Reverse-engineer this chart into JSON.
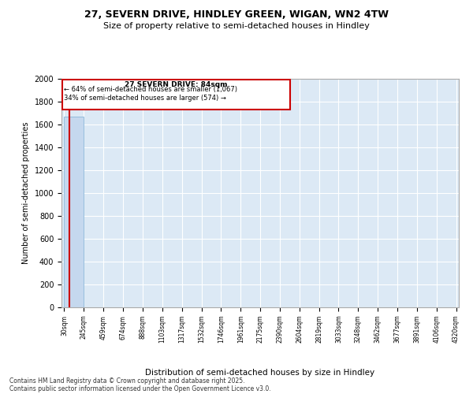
{
  "title1": "27, SEVERN DRIVE, HINDLEY GREEN, WIGAN, WN2 4TW",
  "title2": "Size of property relative to semi-detached houses in Hindley",
  "xlabel": "Distribution of semi-detached houses by size in Hindley",
  "ylabel": "Number of semi-detached properties",
  "annotation_title": "27 SEVERN DRIVE: 84sqm",
  "annotation_line1": "← 64% of semi-detached houses are smaller (1,067)",
  "annotation_line2": "34% of semi-detached houses are larger (574) →",
  "footer1": "Contains HM Land Registry data © Crown copyright and database right 2025.",
  "footer2": "Contains public sector information licensed under the Open Government Licence v3.0.",
  "property_size": 84,
  "bar_color": "#c5d8ee",
  "bar_edge_color": "#7aadd4",
  "property_line_color": "#cc0000",
  "annotation_box_color": "#cc0000",
  "background_color": "#dce9f5",
  "ylim": [
    0,
    2000
  ],
  "yticks": [
    0,
    200,
    400,
    600,
    800,
    1000,
    1200,
    1400,
    1600,
    1800,
    2000
  ],
  "bin_edges": [
    30,
    245,
    459,
    674,
    888,
    1103,
    1317,
    1532,
    1746,
    1961,
    2175,
    2390,
    2604,
    2819,
    3033,
    3248,
    3462,
    3677,
    3891,
    4106,
    4320
  ],
  "bin_labels": [
    "30sqm",
    "245sqm",
    "459sqm",
    "674sqm",
    "888sqm",
    "1103sqm",
    "1317sqm",
    "1532sqm",
    "1746sqm",
    "1961sqm",
    "2175sqm",
    "2390sqm",
    "2604sqm",
    "2819sqm",
    "3033sqm",
    "3248sqm",
    "3462sqm",
    "3677sqm",
    "3891sqm",
    "4106sqm",
    "4320sqm"
  ],
  "bar_heights": [
    1670,
    0,
    0,
    0,
    0,
    0,
    0,
    0,
    0,
    0,
    0,
    0,
    0,
    0,
    0,
    0,
    0,
    0,
    0,
    0
  ]
}
